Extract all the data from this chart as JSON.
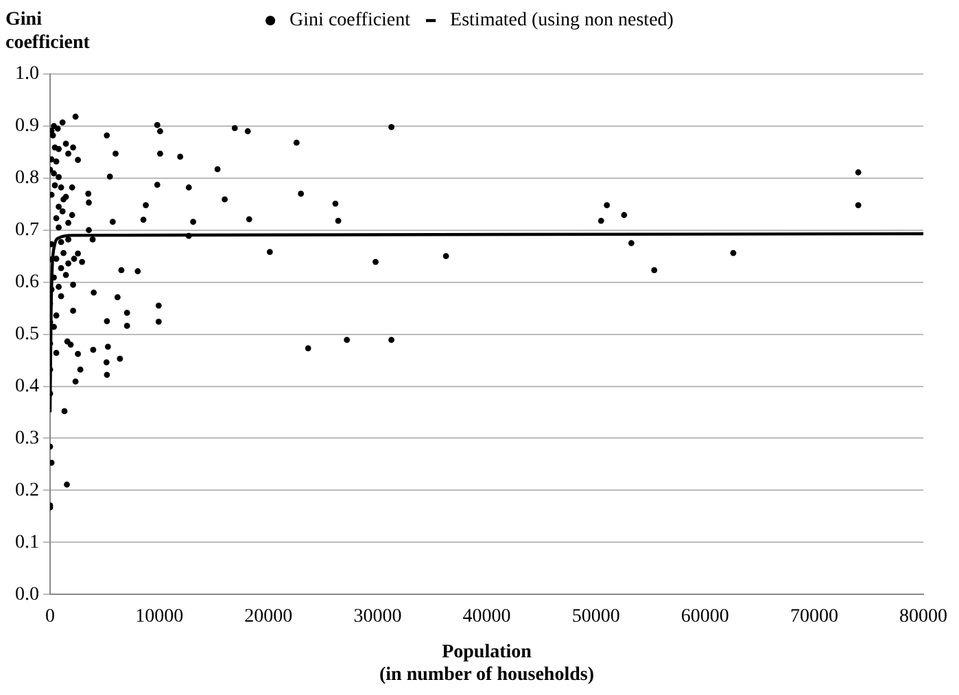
{
  "chart_data": {
    "type": "scatter",
    "ylabel": "Gini coefficient",
    "xlabel": "Population\n(in number of households)",
    "xlim": [
      0,
      80000
    ],
    "xticks": [
      0,
      10000,
      20000,
      30000,
      40000,
      50000,
      60000,
      70000,
      80000
    ],
    "ylim": [
      0,
      1
    ],
    "yticks": [
      {
        "value": 0,
        "label": "0.0"
      },
      {
        "value": 0.1,
        "label": "0.1"
      },
      {
        "value": 0.2,
        "label": "0.2"
      },
      {
        "value": 0.3,
        "label": "0.3"
      },
      {
        "value": 0.4,
        "label": "0.4"
      },
      {
        "value": 0.5,
        "label": "0.5"
      },
      {
        "value": 0.6,
        "label": "0.6"
      },
      {
        "value": 0.7,
        "label": "0.7"
      },
      {
        "value": 0.8,
        "label": "0.8"
      },
      {
        "value": 0.9,
        "label": "0.9"
      },
      {
        "value": 1,
        "label": "1.0"
      }
    ],
    "grid": "y",
    "legend": "top",
    "series": [
      {
        "name": "Gini coefficient",
        "color": "#000000",
        "marker": "circle",
        "x": [
          3500,
          3550,
          3550,
          3900,
          4000,
          2930,
          3950,
          5200,
          5480,
          6000,
          5740,
          6530,
          6180,
          5210,
          7050,
          7050,
          5300,
          5170,
          5210,
          6400,
          8030,
          8550,
          8770,
          9820,
          10080,
          10080,
          9820,
          9950,
          9950,
          11920,
          12710,
          13110,
          12710,
          15340,
          16000,
          16920,
          18110,
          18240,
          20130,
          22580,
          22980,
          23640,
          26140,
          26400,
          27190,
          29820,
          31270,
          31270,
          36270,
          50480,
          51010,
          52590,
          53250,
          55350,
          62590,
          74040,
          74040,
          2330,
          1140,
          350,
          130,
          700,
          1450,
          260,
          440,
          790,
          2110,
          1670,
          2550,
          130,
          570,
          0,
          350,
          790,
          2020,
          440,
          1010,
          130,
          1450,
          1230,
          790,
          1140,
          2020,
          570,
          1670,
          790,
          1670,
          1010,
          130,
          1230,
          2550,
          2200,
          0,
          570,
          1670,
          1010,
          1450,
          350,
          2110,
          790,
          130,
          1010,
          0,
          2110,
          570,
          0,
          350,
          0,
          1580,
          1890,
          570,
          2550,
          2770,
          2330,
          0,
          0,
          1320,
          0,
          130,
          1540,
          0,
          0
        ],
        "values": [
          0.77,
          0.753,
          0.7,
          0.682,
          0.58,
          0.639,
          0.47,
          0.882,
          0.803,
          0.847,
          0.716,
          0.623,
          0.571,
          0.525,
          0.541,
          0.516,
          0.476,
          0.446,
          0.422,
          0.453,
          0.621,
          0.72,
          0.748,
          0.902,
          0.89,
          0.847,
          0.787,
          0.555,
          0.524,
          0.841,
          0.782,
          0.716,
          0.689,
          0.817,
          0.759,
          0.896,
          0.89,
          0.721,
          0.658,
          0.868,
          0.77,
          0.473,
          0.751,
          0.718,
          0.489,
          0.639,
          0.898,
          0.489,
          0.65,
          0.718,
          0.748,
          0.729,
          0.675,
          0.623,
          0.656,
          0.811,
          0.748,
          0.918,
          0.907,
          0.9,
          0.891,
          0.895,
          0.866,
          0.882,
          0.859,
          0.856,
          0.859,
          0.847,
          0.835,
          0.836,
          0.832,
          0.816,
          0.809,
          0.802,
          0.782,
          0.786,
          0.782,
          0.768,
          0.764,
          0.759,
          0.745,
          0.736,
          0.729,
          0.723,
          0.714,
          0.705,
          0.682,
          0.677,
          0.673,
          0.656,
          0.655,
          0.645,
          0.644,
          0.645,
          0.636,
          0.627,
          0.614,
          0.609,
          0.595,
          0.591,
          0.586,
          0.573,
          0.559,
          0.545,
          0.536,
          0.523,
          0.514,
          0.482,
          0.486,
          0.48,
          0.464,
          0.462,
          0.432,
          0.409,
          0.432,
          0.386,
          0.352,
          0.284,
          0.253,
          0.211,
          0.171,
          0.167
        ]
      },
      {
        "name": "Estimated (using non nested)",
        "type": "line",
        "color": "#000000",
        "line_style": "solid",
        "marker": "none",
        "x": [
          0,
          100,
          200,
          400,
          800,
          2000,
          80000
        ],
        "values": [
          0.35,
          0.55,
          0.63,
          0.67,
          0.685,
          0.69,
          0.693
        ]
      }
    ]
  }
}
